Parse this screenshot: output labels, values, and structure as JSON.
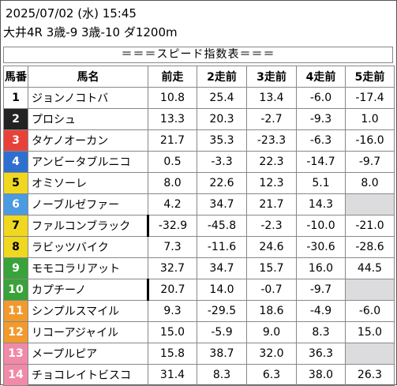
{
  "header": {
    "datetime": "2025/07/02 (水) 15:45",
    "race": "大井4R 3歳-9 3歳-10 ダ1200m"
  },
  "banner": "＝＝＝スピード指数表＝＝＝",
  "columns": [
    "馬番",
    "馬名",
    "前走",
    "2走前",
    "3走前",
    "4走前",
    "5走前"
  ],
  "rows": [
    {
      "no": "1",
      "name": "ジョンノコトバ",
      "color": "#ffffff",
      "text": "light",
      "v": [
        "10.8",
        "25.4",
        "13.4",
        "-6.0",
        "-17.4"
      ]
    },
    {
      "no": "2",
      "name": "プロシュ",
      "color": "#222222",
      "text": "dark",
      "v": [
        "13.3",
        "20.3",
        "-2.7",
        "-9.3",
        "1.0"
      ]
    },
    {
      "no": "3",
      "name": "タケノオーカン",
      "color": "#e8413a",
      "text": "dark",
      "v": [
        "21.7",
        "35.3",
        "-23.3",
        "-6.3",
        "-16.0"
      ]
    },
    {
      "no": "4",
      "name": "アンビータブルニコ",
      "color": "#2f6fd0",
      "text": "dark",
      "v": [
        "0.5",
        "-3.3",
        "22.3",
        "-14.7",
        "-9.7"
      ]
    },
    {
      "no": "5",
      "name": "オミソーレ",
      "color": "#f0d820",
      "text": "light",
      "v": [
        "8.0",
        "22.6",
        "12.3",
        "5.1",
        "8.0"
      ]
    },
    {
      "no": "6",
      "name": "ノーブルゼファー",
      "color": "#4a9be0",
      "text": "dark",
      "v": [
        "4.2",
        "34.7",
        "21.7",
        "14.3",
        ""
      ]
    },
    {
      "no": "7",
      "name": "ファルコンブラック",
      "color": "#f0d820",
      "text": "light",
      "v": [
        "-32.9",
        "-45.8",
        "-2.3",
        "-10.0",
        "-21.0"
      ]
    },
    {
      "no": "8",
      "name": "ラビッツバイク",
      "color": "#f0d820",
      "text": "light",
      "v": [
        "7.3",
        "-11.6",
        "24.6",
        "-30.6",
        "-28.6"
      ]
    },
    {
      "no": "9",
      "name": "モモコラリアット",
      "color": "#3aa23a",
      "text": "dark",
      "v": [
        "32.7",
        "34.7",
        "15.7",
        "16.0",
        "44.5"
      ]
    },
    {
      "no": "10",
      "name": "カプチーノ",
      "color": "#3aa23a",
      "text": "dark",
      "v": [
        "20.7",
        "14.0",
        "-0.7",
        "-9.7",
        ""
      ]
    },
    {
      "no": "11",
      "name": "シンプルスマイル",
      "color": "#f29a2e",
      "text": "dark",
      "v": [
        "9.3",
        "-29.5",
        "18.6",
        "-4.9",
        "-6.0"
      ]
    },
    {
      "no": "12",
      "name": "リコーアジャイル",
      "color": "#f29a2e",
      "text": "dark",
      "v": [
        "15.0",
        "-5.9",
        "9.0",
        "8.3",
        "15.0"
      ]
    },
    {
      "no": "13",
      "name": "メープルピア",
      "color": "#f08aa8",
      "text": "dark",
      "v": [
        "15.8",
        "38.7",
        "32.0",
        "36.3",
        ""
      ]
    },
    {
      "no": "14",
      "name": "チョコレイトビスコ",
      "color": "#f08aa8",
      "text": "dark",
      "v": [
        "31.4",
        "8.3",
        "6.3",
        "38.0",
        "26.3"
      ]
    }
  ]
}
